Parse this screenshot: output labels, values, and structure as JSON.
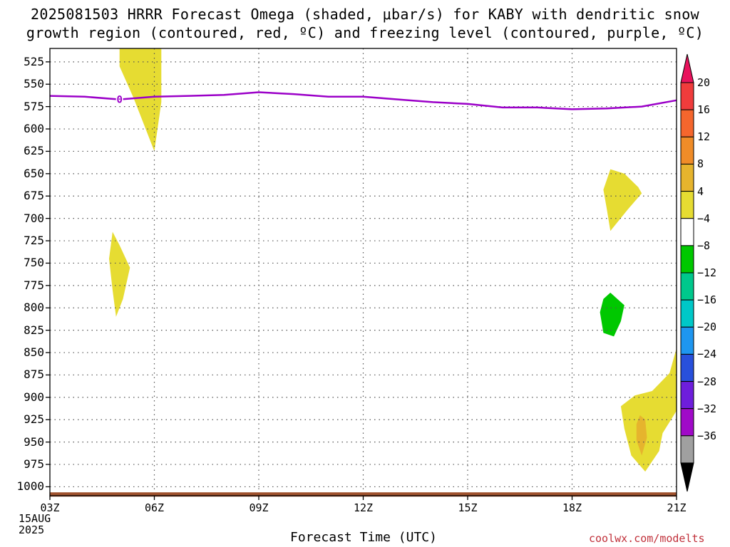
{
  "title_line1": "2025081503 HRRR Forecast Omega (shaded, μbar/s) for KABY with dendritic snow",
  "title_line2": "growth region (contoured, red, ºC) and freezing level (contoured, purple, ºC)",
  "xlabel": "Forecast Time (UTC)",
  "date_label": [
    "15AUG",
    "2025"
  ],
  "credit": "coolwx.com/modelts",
  "colors": {
    "freezing_line": "#9b00c8",
    "ground": "#a0522d",
    "grid": "#555555"
  },
  "chart_data": {
    "type": "heatmap",
    "title": "2025081503 HRRR Forecast Omega (shaded, μbar/s) for KABY with dendritic snow growth region (contoured, red, ºC) and freezing level (contoured, purple, ºC)",
    "xlabel": "Forecast Time (UTC)",
    "ylabel": "",
    "x_ticks": [
      "03Z",
      "06Z",
      "09Z",
      "12Z",
      "15Z",
      "18Z",
      "21Z"
    ],
    "x_range_hours": [
      3,
      21
    ],
    "y_ticks": [
      525,
      550,
      575,
      600,
      625,
      650,
      675,
      700,
      725,
      750,
      775,
      800,
      825,
      850,
      875,
      900,
      925,
      950,
      975,
      1000
    ],
    "y_range_hPa": [
      510,
      1010
    ],
    "grid": true,
    "colorbar": {
      "labels": [
        "20",
        "16",
        "12",
        "8",
        "4",
        "−4",
        "−8",
        "−12",
        "−16",
        "−20",
        "−24",
        "−28",
        "−32",
        "−36"
      ],
      "colors": [
        "#e8125c",
        "#f03c3c",
        "#f5662d",
        "#f08c28",
        "#e6b42d",
        "#e6dc32",
        "#ffffff",
        "#00c800",
        "#00c88c",
        "#00c8c8",
        "#1e96f0",
        "#2850dc",
        "#6e1edc",
        "#a00ac8",
        "#a0a0a0",
        "#000000"
      ],
      "edge_labels_top": "20",
      "edge_labels_bottom": "−36"
    },
    "freezing_level": {
      "label": "0",
      "contour_value": 0,
      "points": [
        [
          3,
          563
        ],
        [
          4,
          564
        ],
        [
          5,
          567
        ],
        [
          6,
          564
        ],
        [
          7,
          563
        ],
        [
          8,
          562
        ],
        [
          9,
          559
        ],
        [
          10,
          561
        ],
        [
          11,
          564
        ],
        [
          12,
          564
        ],
        [
          13,
          567
        ],
        [
          14,
          570
        ],
        [
          15,
          572
        ],
        [
          16,
          576
        ],
        [
          17,
          576
        ],
        [
          18,
          578
        ],
        [
          19,
          577
        ],
        [
          20,
          575
        ],
        [
          21,
          568
        ]
      ]
    },
    "omega_regions": [
      {
        "value_band": "4 to 8",
        "color": "#e6dc32",
        "polygon": [
          [
            5.0,
            510
          ],
          [
            6.2,
            510
          ],
          [
            6.2,
            570
          ],
          [
            6.0,
            625
          ],
          [
            5.7,
            595
          ],
          [
            5.4,
            565
          ],
          [
            5.0,
            530
          ]
        ]
      },
      {
        "value_band": "4 to 8",
        "color": "#e6dc32",
        "polygon": [
          [
            4.8,
            715
          ],
          [
            5.0,
            730
          ],
          [
            5.3,
            755
          ],
          [
            5.1,
            790
          ],
          [
            4.9,
            810
          ],
          [
            4.8,
            780
          ],
          [
            4.7,
            745
          ]
        ]
      },
      {
        "value_band": "4 to 8",
        "color": "#e6dc32",
        "polygon": [
          [
            19.1,
            645
          ],
          [
            19.5,
            650
          ],
          [
            19.9,
            665
          ],
          [
            20.0,
            672
          ],
          [
            19.6,
            690
          ],
          [
            19.1,
            714
          ],
          [
            19.0,
            690
          ],
          [
            18.9,
            668
          ]
        ]
      },
      {
        "value_band": "-8 to -4",
        "color": "#00c800",
        "polygon": [
          [
            19.1,
            783
          ],
          [
            19.3,
            790
          ],
          [
            19.5,
            797
          ],
          [
            19.4,
            815
          ],
          [
            19.2,
            832
          ],
          [
            18.9,
            828
          ],
          [
            18.8,
            805
          ],
          [
            18.9,
            790
          ]
        ]
      },
      {
        "value_band": "4 to 8",
        "color": "#e6dc32",
        "polygon": [
          [
            19.8,
            898
          ],
          [
            20.3,
            893
          ],
          [
            20.8,
            873
          ],
          [
            21.0,
            845
          ],
          [
            21.0,
            915
          ],
          [
            20.6,
            940
          ],
          [
            20.5,
            960
          ],
          [
            20.1,
            983
          ],
          [
            19.7,
            965
          ],
          [
            19.5,
            935
          ],
          [
            19.4,
            910
          ]
        ]
      },
      {
        "value_band": "8 to 12",
        "color": "#e6b42d",
        "polygon": [
          [
            19.95,
            920
          ],
          [
            20.1,
            925
          ],
          [
            20.15,
            945
          ],
          [
            20.0,
            965
          ],
          [
            19.85,
            948
          ],
          [
            19.85,
            930
          ]
        ]
      }
    ],
    "surface_terrain": {
      "label": "ground",
      "pressure_hPa": 1007
    }
  }
}
